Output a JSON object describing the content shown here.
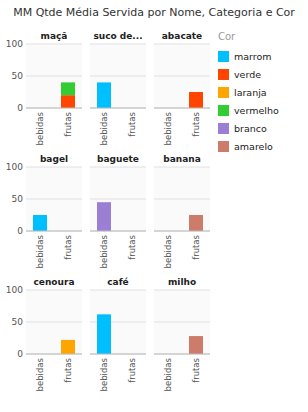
{
  "title": "MM Qtde Média Servida por Nome, Categoria e Cor",
  "legend_title": "Cor",
  "chart_data": [
    {
      "type": "bar",
      "stacked": true,
      "title": "maçã",
      "categories": [
        "bebidas",
        "frutas"
      ],
      "ylim": [
        0,
        100
      ],
      "yticks": [
        0,
        50,
        100
      ],
      "grid": true,
      "series": [
        {
          "name": "marrom",
          "color": "#00BFFF",
          "values": [
            0,
            0
          ]
        },
        {
          "name": "verde",
          "color": "#FF4500",
          "values": [
            0,
            20
          ]
        },
        {
          "name": "laranja",
          "color": "#FFA500",
          "values": [
            0,
            0
          ]
        },
        {
          "name": "vermelho",
          "color": "#32CD32",
          "values": [
            0,
            20
          ]
        },
        {
          "name": "branco",
          "color": "#9B7FD4",
          "values": [
            0,
            0
          ]
        },
        {
          "name": "amarelo",
          "color": "#CD7B6A",
          "values": [
            0,
            0
          ]
        }
      ]
    },
    {
      "type": "bar",
      "stacked": true,
      "title": "suco de...",
      "categories": [
        "bebidas",
        "frutas"
      ],
      "ylim": [
        0,
        100
      ],
      "yticks": [
        0,
        50,
        100
      ],
      "grid": true,
      "tick_labels": "x",
      "series": [
        {
          "name": "marrom",
          "color": "#00BFFF",
          "values": [
            40,
            0
          ]
        },
        {
          "name": "verde",
          "color": "#FF4500",
          "values": [
            0,
            0
          ]
        },
        {
          "name": "laranja",
          "color": "#FFA500",
          "values": [
            0,
            0
          ]
        },
        {
          "name": "vermelho",
          "color": "#32CD32",
          "values": [
            0,
            0
          ]
        },
        {
          "name": "branco",
          "color": "#9B7FD4",
          "values": [
            0,
            0
          ]
        },
        {
          "name": "amarelo",
          "color": "#CD7B6A",
          "values": [
            0,
            0
          ]
        }
      ]
    },
    {
      "type": "bar",
      "stacked": true,
      "title": "abacate",
      "categories": [
        "bebidas",
        "frutas"
      ],
      "ylim": [
        0,
        100
      ],
      "yticks": [
        0,
        50,
        100
      ],
      "grid": true,
      "tick_labels": "x",
      "series": [
        {
          "name": "marrom",
          "color": "#00BFFF",
          "values": [
            0,
            0
          ]
        },
        {
          "name": "verde",
          "color": "#FF4500",
          "values": [
            0,
            25
          ]
        },
        {
          "name": "laranja",
          "color": "#FFA500",
          "values": [
            0,
            0
          ]
        },
        {
          "name": "vermelho",
          "color": "#32CD32",
          "values": [
            0,
            0
          ]
        },
        {
          "name": "branco",
          "color": "#9B7FD4",
          "values": [
            0,
            0
          ]
        },
        {
          "name": "amarelo",
          "color": "#CD7B6A",
          "values": [
            0,
            0
          ]
        }
      ]
    },
    {
      "type": "bar",
      "stacked": true,
      "title": "bagel",
      "categories": [
        "bebidas",
        "frutas"
      ],
      "ylim": [
        0,
        100
      ],
      "yticks": [
        0,
        50,
        100
      ],
      "grid": true,
      "series": [
        {
          "name": "marrom",
          "color": "#00BFFF",
          "values": [
            25,
            0
          ]
        },
        {
          "name": "verde",
          "color": "#FF4500",
          "values": [
            0,
            0
          ]
        },
        {
          "name": "laranja",
          "color": "#FFA500",
          "values": [
            0,
            0
          ]
        },
        {
          "name": "vermelho",
          "color": "#32CD32",
          "values": [
            0,
            0
          ]
        },
        {
          "name": "branco",
          "color": "#9B7FD4",
          "values": [
            0,
            0
          ]
        },
        {
          "name": "amarelo",
          "color": "#CD7B6A",
          "values": [
            0,
            0
          ]
        }
      ]
    },
    {
      "type": "bar",
      "stacked": true,
      "title": "baguete",
      "categories": [
        "bebidas",
        "frutas"
      ],
      "ylim": [
        0,
        100
      ],
      "yticks": [
        0,
        50,
        100
      ],
      "grid": true,
      "tick_labels": "x",
      "series": [
        {
          "name": "marrom",
          "color": "#00BFFF",
          "values": [
            0,
            0
          ]
        },
        {
          "name": "verde",
          "color": "#FF4500",
          "values": [
            0,
            0
          ]
        },
        {
          "name": "laranja",
          "color": "#FFA500",
          "values": [
            0,
            0
          ]
        },
        {
          "name": "vermelho",
          "color": "#32CD32",
          "values": [
            0,
            0
          ]
        },
        {
          "name": "branco",
          "color": "#9B7FD4",
          "values": [
            45,
            0
          ]
        },
        {
          "name": "amarelo",
          "color": "#CD7B6A",
          "values": [
            0,
            0
          ]
        }
      ]
    },
    {
      "type": "bar",
      "stacked": true,
      "title": "banana",
      "categories": [
        "bebidas",
        "frutas"
      ],
      "ylim": [
        0,
        100
      ],
      "yticks": [
        0,
        50,
        100
      ],
      "grid": true,
      "tick_labels": "x",
      "series": [
        {
          "name": "marrom",
          "color": "#00BFFF",
          "values": [
            0,
            0
          ]
        },
        {
          "name": "verde",
          "color": "#FF4500",
          "values": [
            0,
            0
          ]
        },
        {
          "name": "laranja",
          "color": "#FFA500",
          "values": [
            0,
            0
          ]
        },
        {
          "name": "vermelho",
          "color": "#32CD32",
          "values": [
            0,
            0
          ]
        },
        {
          "name": "branco",
          "color": "#9B7FD4",
          "values": [
            0,
            0
          ]
        },
        {
          "name": "amarelo",
          "color": "#CD7B6A",
          "values": [
            0,
            25
          ]
        }
      ]
    },
    {
      "type": "bar",
      "stacked": true,
      "title": "cenoura",
      "categories": [
        "bebidas",
        "frutas"
      ],
      "ylim": [
        0,
        100
      ],
      "yticks": [
        0,
        50,
        100
      ],
      "grid": true,
      "series": [
        {
          "name": "marrom",
          "color": "#00BFFF",
          "values": [
            0,
            0
          ]
        },
        {
          "name": "verde",
          "color": "#FF4500",
          "values": [
            0,
            0
          ]
        },
        {
          "name": "laranja",
          "color": "#FFA500",
          "values": [
            0,
            22
          ]
        },
        {
          "name": "vermelho",
          "color": "#32CD32",
          "values": [
            0,
            0
          ]
        },
        {
          "name": "branco",
          "color": "#9B7FD4",
          "values": [
            0,
            0
          ]
        },
        {
          "name": "amarelo",
          "color": "#CD7B6A",
          "values": [
            0,
            0
          ]
        }
      ]
    },
    {
      "type": "bar",
      "stacked": true,
      "title": "café",
      "categories": [
        "bebidas",
        "frutas"
      ],
      "ylim": [
        0,
        100
      ],
      "yticks": [
        0,
        50,
        100
      ],
      "grid": true,
      "tick_labels": "x",
      "series": [
        {
          "name": "marrom",
          "color": "#00BFFF",
          "values": [
            62,
            0
          ]
        },
        {
          "name": "verde",
          "color": "#FF4500",
          "values": [
            0,
            0
          ]
        },
        {
          "name": "laranja",
          "color": "#FFA500",
          "values": [
            0,
            0
          ]
        },
        {
          "name": "vermelho",
          "color": "#32CD32",
          "values": [
            0,
            0
          ]
        },
        {
          "name": "branco",
          "color": "#9B7FD4",
          "values": [
            0,
            0
          ]
        },
        {
          "name": "amarelo",
          "color": "#CD7B6A",
          "values": [
            0,
            0
          ]
        }
      ]
    },
    {
      "type": "bar",
      "stacked": true,
      "title": "milho",
      "categories": [
        "bebidas",
        "frutas"
      ],
      "ylim": [
        0,
        100
      ],
      "yticks": [
        0,
        50,
        100
      ],
      "grid": true,
      "tick_labels": "x",
      "series": [
        {
          "name": "marrom",
          "color": "#00BFFF",
          "values": [
            0,
            0
          ]
        },
        {
          "name": "verde",
          "color": "#FF4500",
          "values": [
            0,
            0
          ]
        },
        {
          "name": "laranja",
          "color": "#FFA500",
          "values": [
            0,
            0
          ]
        },
        {
          "name": "vermelho",
          "color": "#32CD32",
          "values": [
            0,
            0
          ]
        },
        {
          "name": "branco",
          "color": "#9B7FD4",
          "values": [
            0,
            0
          ]
        },
        {
          "name": "amarelo",
          "color": "#CD7B6A",
          "values": [
            0,
            28
          ]
        }
      ]
    }
  ]
}
